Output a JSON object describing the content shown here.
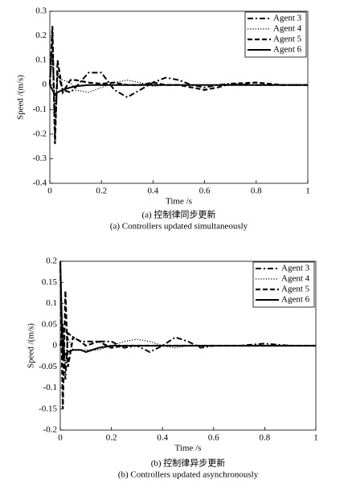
{
  "chart_data": [
    {
      "type": "line",
      "xlabel": "Time /s",
      "ylabel": "Speed /(m/s)",
      "caption_cn": "(a) 控制律同步更新",
      "caption_en": "(a) Controllers updated simultaneously",
      "xlim": [
        0,
        1
      ],
      "ylim": [
        -0.4,
        0.3
      ],
      "xticks": [
        0,
        0.2,
        0.4,
        0.6,
        0.8,
        1
      ],
      "yticks": [
        -0.4,
        -0.3,
        -0.2,
        -0.1,
        0,
        0.1,
        0.2,
        0.3
      ],
      "legend": "upper right",
      "x": [
        0,
        0.01,
        0.02,
        0.03,
        0.05,
        0.08,
        0.1,
        0.15,
        0.2,
        0.25,
        0.3,
        0.35,
        0.4,
        0.45,
        0.5,
        0.55,
        0.6,
        0.65,
        0.7,
        0.8,
        0.9,
        1
      ],
      "series": [
        {
          "name": "Agent 3",
          "color": "#000000",
          "dash": "dash-dot",
          "values": [
            0,
            0.2,
            -0.2,
            0.05,
            -0.02,
            -0.03,
            -0.01,
            0.05,
            0.05,
            -0.02,
            -0.05,
            -0.02,
            0.01,
            0.03,
            0.02,
            0,
            -0.01,
            0,
            0.005,
            0,
            0,
            0
          ]
        },
        {
          "name": "Agent 4",
          "color": "#000000",
          "dash": "dotted",
          "values": [
            0,
            0.1,
            -0.1,
            0.03,
            0.02,
            0.01,
            -0.02,
            -0.03,
            -0.01,
            0.01,
            0.02,
            0.01,
            -0.005,
            0,
            0,
            0,
            0,
            0,
            0,
            0,
            0,
            0
          ]
        },
        {
          "name": "Agent 5",
          "color": "#000000",
          "dash": "dashed",
          "values": [
            0,
            0.24,
            -0.24,
            0.1,
            -0.03,
            0.02,
            0.02,
            0.01,
            0.005,
            0.01,
            0,
            0,
            0.01,
            0,
            0,
            -0.01,
            -0.02,
            -0.01,
            0.005,
            0.01,
            0,
            0
          ]
        },
        {
          "name": "Agent 6",
          "color": "#000000",
          "dash": "solid",
          "values": [
            0,
            -0.02,
            -0.04,
            -0.03,
            -0.02,
            -0.01,
            -0.005,
            0,
            0,
            0,
            0,
            0,
            0,
            0,
            0,
            0,
            0,
            0,
            0,
            0,
            0,
            0
          ]
        }
      ]
    },
    {
      "type": "line",
      "xlabel": "Time /s",
      "ylabel": "Speed /(m/s)",
      "caption_cn": "(b) 控制律异步更新",
      "caption_en": "(b) Controllers updated asynchronously",
      "xlim": [
        0,
        1
      ],
      "ylim": [
        -0.2,
        0.2
      ],
      "xticks": [
        0,
        0.2,
        0.4,
        0.6,
        0.8,
        1
      ],
      "yticks": [
        -0.2,
        -0.15,
        -0.1,
        -0.05,
        0,
        0.05,
        0.1,
        0.15,
        0.2
      ],
      "legend": "upper right",
      "x": [
        0,
        0.01,
        0.02,
        0.03,
        0.05,
        0.08,
        0.1,
        0.15,
        0.2,
        0.25,
        0.3,
        0.35,
        0.4,
        0.45,
        0.5,
        0.55,
        0.6,
        0.65,
        0.7,
        0.8,
        0.9,
        1
      ],
      "series": [
        {
          "name": "Agent 3",
          "color": "#000000",
          "dash": "dash-dot",
          "values": [
            0,
            0.05,
            -0.08,
            0.03,
            0.02,
            0.01,
            0.01,
            0.01,
            0.01,
            -0.005,
            0,
            -0.015,
            0,
            0.02,
            0.01,
            -0.005,
            0,
            0,
            0,
            0.005,
            0,
            0
          ]
        },
        {
          "name": "Agent 4",
          "color": "#000000",
          "dash": "dotted",
          "values": [
            0,
            0.05,
            -0.05,
            0.02,
            -0.01,
            -0.01,
            -0.01,
            -0.01,
            0,
            0.01,
            0.015,
            0.01,
            0,
            -0.005,
            0,
            0,
            0,
            0,
            0,
            0,
            0,
            0
          ]
        },
        {
          "name": "Agent 5",
          "color": "#000000",
          "dash": "dashed",
          "values": [
            0.2,
            -0.15,
            0.13,
            -0.05,
            0.02,
            0.01,
            0,
            0.01,
            -0.005,
            0,
            0,
            0,
            0,
            0,
            0,
            0,
            0,
            0,
            0,
            0,
            0,
            0
          ]
        },
        {
          "name": "Agent 6",
          "color": "#000000",
          "dash": "solid",
          "values": [
            0.2,
            -0.03,
            -0.02,
            -0.015,
            -0.01,
            -0.01,
            -0.015,
            -0.005,
            0,
            0,
            0,
            0,
            0,
            0,
            0,
            0,
            0,
            0,
            0,
            0,
            0,
            0
          ]
        }
      ]
    }
  ]
}
